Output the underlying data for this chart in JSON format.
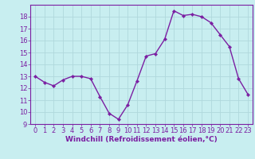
{
  "x": [
    0,
    1,
    2,
    3,
    4,
    5,
    6,
    7,
    8,
    9,
    10,
    11,
    12,
    13,
    14,
    15,
    16,
    17,
    18,
    19,
    20,
    21,
    22,
    23
  ],
  "y": [
    13,
    12.5,
    12.2,
    12.7,
    13,
    13,
    12.8,
    11.3,
    9.9,
    9.4,
    10.6,
    12.6,
    14.7,
    14.9,
    16.1,
    18.5,
    18.1,
    18.2,
    18.0,
    17.5,
    16.5,
    15.5,
    12.8,
    11.5
  ],
  "line_color": "#7b1fa2",
  "marker": "D",
  "marker_size": 2.2,
  "bg_color": "#c8eef0",
  "grid_color": "#b0d8dc",
  "xlabel": "Windchill (Refroidissement éolien,°C)",
  "xlim": [
    -0.5,
    23.5
  ],
  "ylim": [
    9,
    19
  ],
  "yticks": [
    9,
    10,
    11,
    12,
    13,
    14,
    15,
    16,
    17,
    18
  ],
  "xticks": [
    0,
    1,
    2,
    3,
    4,
    5,
    6,
    7,
    8,
    9,
    10,
    11,
    12,
    13,
    14,
    15,
    16,
    17,
    18,
    19,
    20,
    21,
    22,
    23
  ],
  "label_fontsize": 6.5,
  "tick_fontsize": 6.0,
  "spine_color": "#7b1fa2",
  "line_width": 1.0
}
